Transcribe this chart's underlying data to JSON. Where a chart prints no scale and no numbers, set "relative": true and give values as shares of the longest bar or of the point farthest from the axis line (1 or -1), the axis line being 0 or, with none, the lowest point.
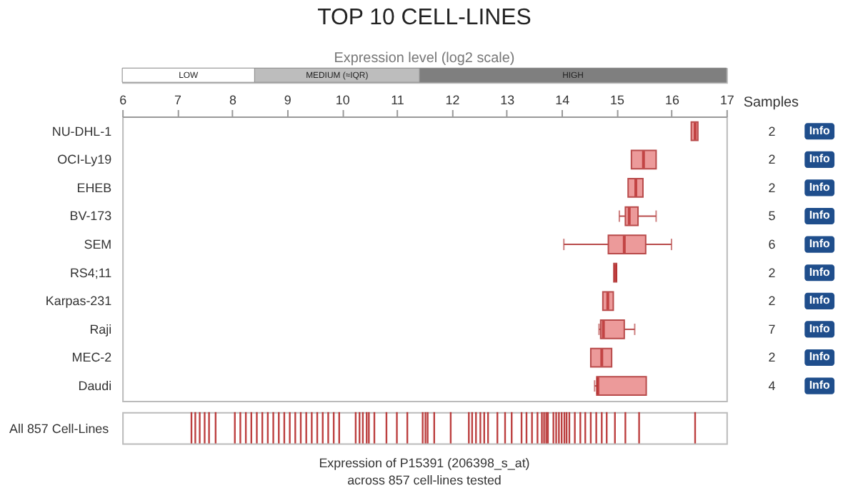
{
  "chart_data": [
    {
      "type": "bar",
      "orientation": "horizontal",
      "stacked": true,
      "relative": true,
      "title": "TOP 10 CELL-LINES",
      "xlabel": "Expression level (log2 scale)",
      "tick_labels": false,
      "categories": [
        null
      ],
      "series": [
        {
          "name": "LOW",
          "color": "#ffffff",
          "values": [
            0.219
          ]
        },
        {
          "name": "MEDIUM (≈IQR)",
          "color": "#bdbdbd",
          "values": [
            0.273
          ]
        },
        {
          "name": "HIGH",
          "color": "#7f7f7f",
          "values": [
            0.508
          ]
        }
      ]
    },
    {
      "type": "box",
      "orientation": "horizontal",
      "categories": [
        "NU-DHL-1",
        "OCI-Ly19",
        "EHEB",
        "BV-173",
        "SEM",
        "RS4;11",
        "Karpas-231",
        "Raji",
        "MEC-2",
        "Daudi"
      ],
      "boxes": [
        {
          "low": 16.36,
          "q1": 16.36,
          "median": 16.43,
          "q3": 16.48,
          "high": 16.48
        },
        {
          "low": 15.27,
          "q1": 15.27,
          "median": 15.49,
          "q3": 15.72,
          "high": 15.72
        },
        {
          "low": 15.21,
          "q1": 15.21,
          "median": 15.35,
          "q3": 15.48,
          "high": 15.48
        },
        {
          "low": 15.05,
          "q1": 15.16,
          "median": 15.23,
          "q3": 15.39,
          "high": 15.72
        },
        {
          "low": 14.04,
          "q1": 14.85,
          "median": 15.14,
          "q3": 15.53,
          "high": 16.0
        },
        {
          "low": 14.95,
          "q1": 14.95,
          "median": 14.98,
          "q3": 15.0,
          "high": 15.0
        },
        {
          "low": 14.75,
          "q1": 14.75,
          "median": 14.84,
          "q3": 14.94,
          "high": 14.94
        },
        {
          "low": 14.68,
          "q1": 14.71,
          "median": 14.76,
          "q3": 15.14,
          "high": 15.33
        },
        {
          "low": 14.53,
          "q1": 14.53,
          "median": 14.73,
          "q3": 14.91,
          "high": 14.91
        },
        {
          "low": 14.6,
          "q1": 14.64,
          "median": 14.66,
          "q3": 15.54,
          "high": 15.54
        }
      ],
      "color": "#ec9a9a",
      "xlim": [
        6,
        17
      ],
      "xticks": [
        6,
        7,
        8,
        9,
        10,
        11,
        12,
        13,
        14,
        15,
        16,
        17
      ],
      "grid": false,
      "annotations": [
        "Samples",
        "2",
        "2",
        "2",
        "5",
        "6",
        "2",
        "2",
        "7",
        "2",
        "4",
        "Info",
        "Info",
        "Info",
        "Info",
        "Info",
        "Info",
        "Info",
        "Info",
        "Info",
        "Info"
      ]
    },
    {
      "type": "bar",
      "relative": true,
      "ylabel": "All 857 Cell-Lines",
      "tick_labels": false,
      "xlim": [
        6,
        17
      ],
      "color": "#b52a2a",
      "x": [
        7.26,
        7.33,
        7.41,
        7.5,
        7.58,
        7.7,
        8.05,
        8.15,
        8.25,
        8.35,
        8.45,
        8.55,
        8.65,
        8.75,
        8.85,
        8.95,
        9.05,
        9.15,
        9.25,
        9.35,
        9.45,
        9.55,
        9.65,
        9.75,
        9.85,
        9.95,
        10.25,
        10.32,
        10.38,
        10.45,
        10.49,
        10.59,
        10.81,
        11.0,
        11.19,
        11.47,
        11.52,
        11.56,
        11.68,
        11.98,
        12.31,
        12.37,
        12.44,
        12.52,
        12.59,
        12.66,
        12.83,
        12.97,
        13.09,
        13.27,
        13.36,
        13.46,
        13.56,
        13.64,
        13.68,
        13.72,
        13.75,
        13.85,
        13.9,
        13.95,
        14.0,
        14.05,
        14.09,
        14.14,
        14.24,
        14.34,
        14.43,
        14.53,
        14.63,
        14.73,
        14.82,
        14.97,
        15.16,
        15.41,
        16.43
      ],
      "values": [
        1,
        1,
        1,
        1,
        1,
        1,
        1,
        1,
        1,
        1,
        1,
        1,
        1,
        1,
        1,
        1,
        1,
        1,
        1,
        1,
        1,
        1,
        1,
        1,
        1,
        1,
        1,
        1,
        1,
        1,
        1,
        1,
        1,
        1,
        1,
        1,
        1,
        1,
        1,
        1,
        1,
        1,
        1,
        1,
        1,
        1,
        1,
        1,
        1,
        1,
        1,
        1,
        1,
        1,
        1,
        1,
        1,
        1,
        1,
        1,
        1,
        1,
        1,
        1,
        1,
        1,
        1,
        1,
        1,
        1,
        1,
        1,
        1,
        1,
        1
      ],
      "annotations": [
        "Expression of P15391 (206398_s_at)",
        "across 857 cell-lines tested"
      ]
    }
  ]
}
